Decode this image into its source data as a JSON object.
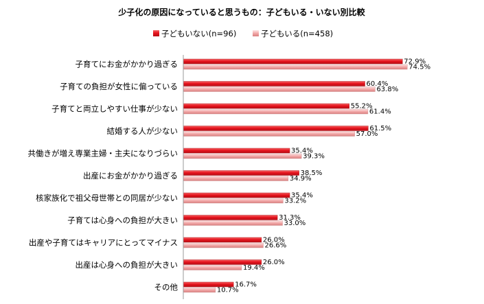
{
  "chart_data": {
    "type": "bar",
    "orientation": "horizontal",
    "title": "少子化の原因になっていると思うもの：子どもいる・いない別比較",
    "categories": [
      "子育てにお金がかかり過ぎる",
      "子育ての負担が女性に偏っている",
      "子育てと両立しやすい仕事が少ない",
      "結婚する人が少ない",
      "共働きが増え専業主婦・主夫になりづらい",
      "出産にお金がかかり過ぎる",
      "核家族化で祖父母世帯との同居が少ない",
      "子育ては心身への負担が大きい",
      "出産や子育てはキャリアにとってマイナス",
      "出産は心身への負担が大きい",
      "その他"
    ],
    "series": [
      {
        "name": "子どもいない(n=96)",
        "color": "#e8141e",
        "values": [
          72.9,
          60.4,
          55.2,
          61.5,
          35.4,
          38.5,
          35.4,
          31.3,
          26.0,
          26.0,
          16.7
        ]
      },
      {
        "name": "子どもいる(n=458)",
        "color": "#f2a8a8",
        "values": [
          74.5,
          63.8,
          61.4,
          57.0,
          39.3,
          34.9,
          33.2,
          33.0,
          26.6,
          19.4,
          10.7
        ]
      }
    ],
    "value_suffix": "%",
    "xlim": [
      0,
      100
    ],
    "grid": false,
    "legend_position": "top-center"
  }
}
